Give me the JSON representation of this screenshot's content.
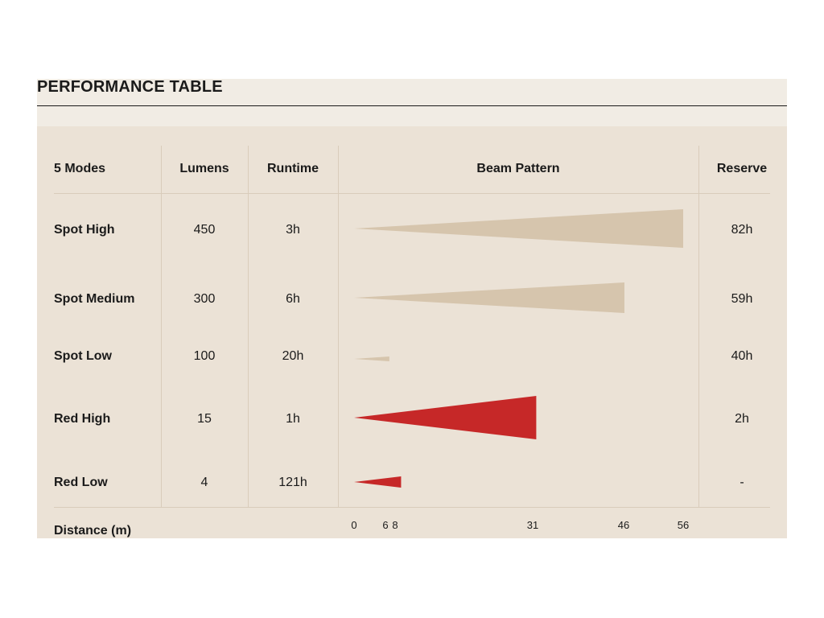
{
  "title": "PERFORMANCE TABLE",
  "chart_data": {
    "type": "table",
    "columns": [
      "5 Modes",
      "Lumens",
      "Runtime",
      "Beam Pattern",
      "Reserve"
    ],
    "rows": [
      {
        "mode": "Spot High",
        "lumens": "450",
        "runtime": "3h",
        "reserve": "82h",
        "distance": 56,
        "color": "#d6c5ad"
      },
      {
        "mode": "Spot Medium",
        "lumens": "300",
        "runtime": "6h",
        "reserve": "59h",
        "distance": 46,
        "color": "#d6c5ad"
      },
      {
        "mode": "Spot Low",
        "lumens": "100",
        "runtime": "20h",
        "reserve": "40h",
        "distance": 6,
        "color": "#d6c5ad"
      },
      {
        "mode": "Red High",
        "lumens": "15",
        "runtime": "1h",
        "reserve": "2h",
        "distance": 31,
        "color": "#c62828"
      },
      {
        "mode": "Red Low",
        "lumens": "4",
        "runtime": "121h",
        "reserve": "-",
        "distance": 8,
        "color": "#c62828"
      }
    ],
    "distance_label": "Distance (m)",
    "distance_ticks": [
      "0",
      "6",
      "8",
      "31",
      "46",
      "56"
    ],
    "xlim": [
      0,
      56
    ]
  }
}
